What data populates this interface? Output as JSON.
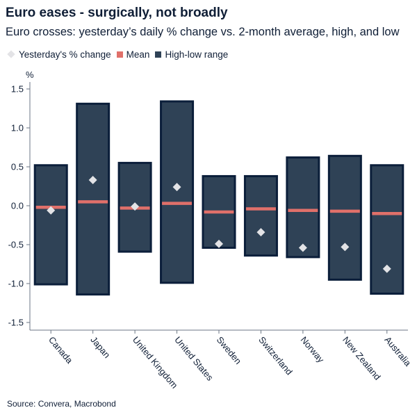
{
  "title": "Euro eases - surgically, not broadly",
  "subtitle": "Euro crosses: yesterday’s daily % change vs. 2-month average, high, and low",
  "legend": {
    "change": "Yesterday's % change",
    "mean": "Mean",
    "range": "High-low range"
  },
  "source": "Source: Convera, Macrobond",
  "colors": {
    "range_fill": "#2f4256",
    "range_border": "#0b1e3a",
    "mean": "#e0706a",
    "change_marker": "#e3e3e6"
  },
  "chart_data": {
    "type": "bar",
    "y_unit_label": "%",
    "ylim": [
      -1.6,
      1.6
    ],
    "yticks": [
      1.5,
      1.0,
      0.5,
      0.0,
      -0.5,
      -1.0,
      -1.5
    ],
    "ytick_labels": [
      "1.5",
      "1.0",
      "0.5",
      "0.0",
      "-0.5",
      "-1.0",
      "-1.5"
    ],
    "categories": [
      "Canada",
      "Japan",
      "United Kingdom",
      "United States",
      "Sweden",
      "Switzerland",
      "Norway",
      "New Zealand",
      "Australia"
    ],
    "series": [
      {
        "name": "High-low range",
        "high": [
          0.52,
          1.31,
          0.55,
          1.34,
          0.38,
          0.38,
          0.62,
          0.64,
          0.52
        ],
        "low": [
          -1.01,
          -1.14,
          -0.59,
          -0.99,
          -0.54,
          -0.64,
          -0.66,
          -0.95,
          -1.13
        ]
      },
      {
        "name": "Mean",
        "values": [
          -0.02,
          0.05,
          -0.03,
          0.03,
          -0.08,
          -0.04,
          -0.06,
          -0.07,
          -0.1
        ]
      },
      {
        "name": "Yesterday's % change",
        "values": [
          -0.06,
          0.33,
          -0.01,
          0.24,
          -0.49,
          -0.34,
          -0.54,
          -0.53,
          -0.81
        ]
      }
    ]
  }
}
